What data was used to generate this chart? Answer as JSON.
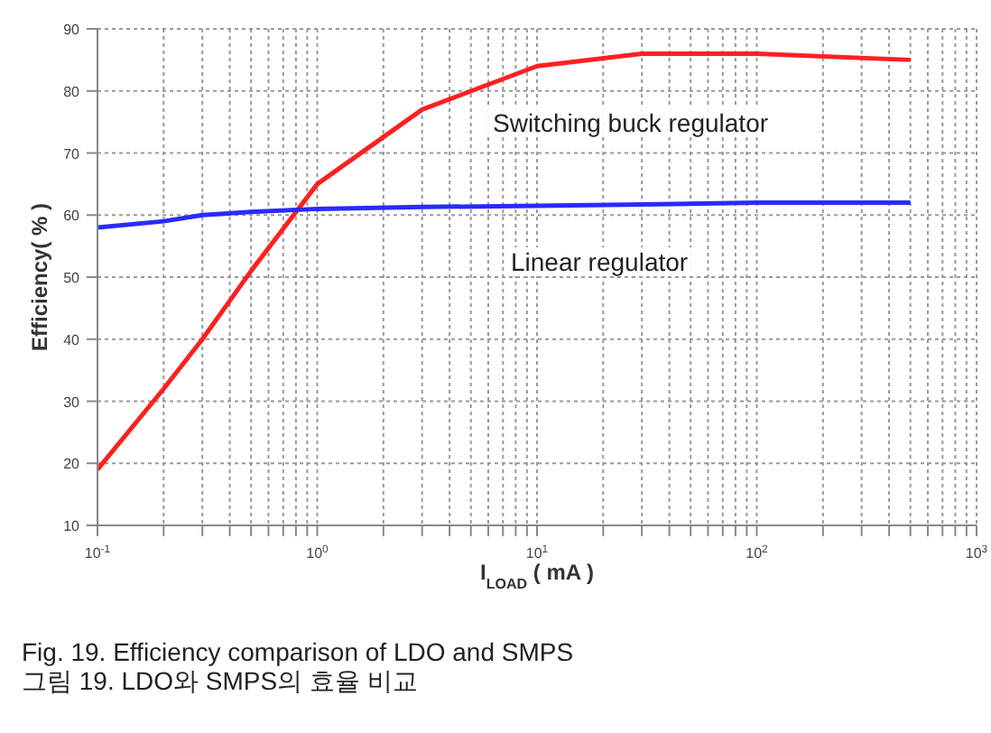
{
  "chart_data": {
    "type": "line",
    "xlabel": "I$_{LOAD}$ ( mA )",
    "ylabel": "Efficiency( % )",
    "log": "x",
    "x": [
      0.1,
      0.2,
      0.3,
      0.5,
      1,
      3,
      10,
      30,
      100,
      500
    ],
    "series": [
      {
        "name": "Switching buck regulator",
        "color": "#ff2020",
        "values": [
          19,
          32,
          40,
          51,
          65,
          77,
          84,
          86,
          86,
          85
        ]
      },
      {
        "name": "Linear regulator",
        "color": "#2a2aff",
        "values": [
          58,
          59,
          60,
          60.5,
          61,
          61.3,
          61.5,
          61.7,
          62,
          62
        ]
      }
    ],
    "xlim": [
      0.1,
      1000
    ],
    "xticks": [
      {
        "value": 0.1,
        "label": "10$^{-1}$"
      },
      {
        "value": 0.2,
        "label": null
      },
      {
        "value": 0.3,
        "label": null
      },
      {
        "value": 0.4,
        "label": null
      },
      {
        "value": 0.5,
        "label": null
      },
      {
        "value": 0.6,
        "label": null
      },
      {
        "value": 0.7,
        "label": null
      },
      {
        "value": 0.8,
        "label": null
      },
      {
        "value": 0.9,
        "label": null
      },
      {
        "value": 1,
        "label": "10$^{0}$"
      },
      {
        "value": 2,
        "label": null
      },
      {
        "value": 3,
        "label": null
      },
      {
        "value": 4,
        "label": null
      },
      {
        "value": 5,
        "label": null
      },
      {
        "value": 6,
        "label": null
      },
      {
        "value": 7,
        "label": null
      },
      {
        "value": 8,
        "label": null
      },
      {
        "value": 9,
        "label": null
      },
      {
        "value": 10,
        "label": "10$^{1}$"
      },
      {
        "value": 20,
        "label": null
      },
      {
        "value": 30,
        "label": null
      },
      {
        "value": 40,
        "label": null
      },
      {
        "value": 50,
        "label": null
      },
      {
        "value": 60,
        "label": null
      },
      {
        "value": 70,
        "label": null
      },
      {
        "value": 80,
        "label": null
      },
      {
        "value": 90,
        "label": null
      },
      {
        "value": 100,
        "label": "10$^{2}$"
      },
      {
        "value": 200,
        "label": null
      },
      {
        "value": 300,
        "label": null
      },
      {
        "value": 400,
        "label": null
      },
      {
        "value": 500,
        "label": null
      },
      {
        "value": 600,
        "label": null
      },
      {
        "value": 700,
        "label": null
      },
      {
        "value": 800,
        "label": null
      },
      {
        "value": 900,
        "label": null
      },
      {
        "value": 1000,
        "label": "10$^{3}$"
      }
    ],
    "ylim": [
      10,
      90
    ],
    "yticks": [
      10,
      20,
      30,
      40,
      50,
      60,
      70,
      80,
      90
    ],
    "grid": true,
    "line_style": "solid",
    "annotations": [
      "Fig. 19. Efficiency comparison of LDO and SMPS",
      "그림 19. LDO와 SMPS의 효율 비교"
    ]
  }
}
